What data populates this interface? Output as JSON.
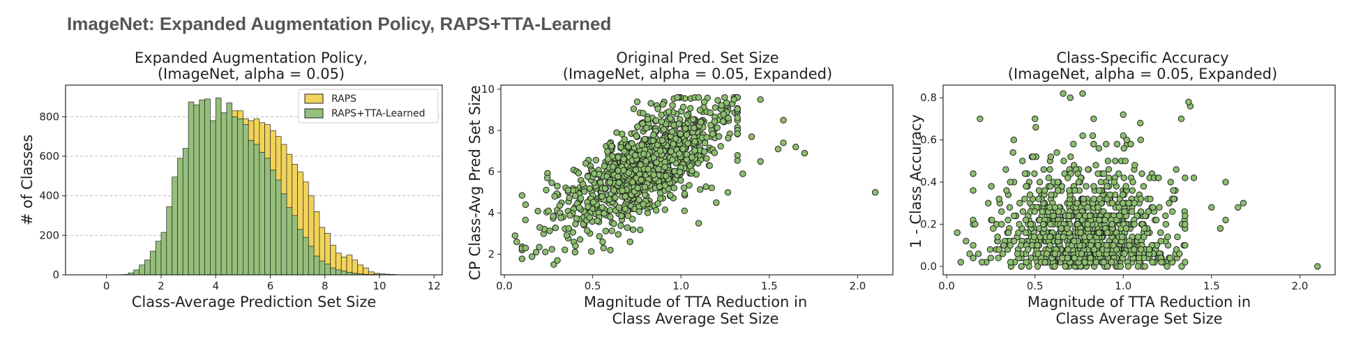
{
  "figure": {
    "title": "ImageNet: Expanded Augmentation Policy, RAPS+TTA-Learned"
  },
  "colors": {
    "raps": "#f2d35a",
    "tta": "#95bf7a",
    "scatter_fill": "#8cbf6e",
    "edge": "#222222",
    "grid": "#bbbbbb"
  },
  "chart_data": [
    {
      "type": "bar",
      "title_line1": "Expanded Augmentation Policy,",
      "title_line2": "(ImageNet, alpha = 0.05)",
      "xlabel": "Class-Average Prediction Set Size",
      "ylabel": "# of Classes",
      "xlim": [
        -1.5,
        12.3
      ],
      "ylim": [
        0,
        960
      ],
      "xticks": [
        0,
        2,
        4,
        6,
        8,
        10,
        12
      ],
      "yticks": [
        0,
        200,
        400,
        600,
        800
      ],
      "grid_y": true,
      "legend_position": "top-right",
      "bin_width": 0.2,
      "series": [
        {
          "name": "RAPS",
          "bins_start": [
            0.8,
            1.0,
            1.2,
            1.4,
            1.6,
            1.8,
            2.0,
            2.2,
            2.4,
            2.6,
            2.8,
            3.0,
            3.2,
            3.4,
            3.6,
            3.8,
            4.0,
            4.2,
            4.4,
            4.6,
            4.8,
            5.0,
            5.2,
            5.4,
            5.6,
            5.8,
            6.0,
            6.2,
            6.4,
            6.6,
            6.8,
            7.0,
            7.2,
            7.4,
            7.6,
            7.8,
            8.0,
            8.2,
            8.4,
            8.6,
            8.8,
            9.0,
            9.2,
            9.4,
            9.6,
            9.8,
            10.0,
            10.2,
            10.4
          ],
          "values": [
            5,
            15,
            25,
            45,
            65,
            95,
            145,
            200,
            290,
            380,
            420,
            530,
            620,
            700,
            740,
            760,
            790,
            800,
            820,
            830,
            830,
            790,
            780,
            790,
            770,
            760,
            730,
            700,
            660,
            610,
            560,
            520,
            470,
            400,
            320,
            240,
            210,
            150,
            110,
            90,
            100,
            75,
            50,
            35,
            15,
            8,
            5,
            3,
            2
          ]
        },
        {
          "name": "RAPS+TTA-Learned",
          "bins_start": [
            0.6,
            0.8,
            1.0,
            1.2,
            1.4,
            1.6,
            1.8,
            2.0,
            2.2,
            2.4,
            2.6,
            2.8,
            3.0,
            3.2,
            3.4,
            3.6,
            3.8,
            4.0,
            4.2,
            4.4,
            4.6,
            4.8,
            5.0,
            5.2,
            5.4,
            5.6,
            5.8,
            6.0,
            6.2,
            6.4,
            6.6,
            6.8,
            7.0,
            7.2,
            7.4,
            7.6,
            7.8,
            8.0,
            8.2,
            8.4,
            8.6,
            8.8,
            9.0,
            9.2,
            9.4,
            9.6,
            9.8,
            10.0,
            10.2,
            10.4
          ],
          "values": [
            2,
            10,
            25,
            50,
            75,
            120,
            170,
            215,
            345,
            495,
            590,
            640,
            875,
            860,
            885,
            890,
            780,
            895,
            820,
            870,
            800,
            790,
            760,
            680,
            660,
            620,
            590,
            530,
            480,
            410,
            340,
            300,
            230,
            190,
            145,
            95,
            70,
            55,
            35,
            25,
            20,
            13,
            8,
            5,
            3,
            2,
            2,
            1,
            1,
            1
          ]
        }
      ]
    },
    {
      "type": "scatter",
      "title_line1": "Original Pred. Set Size",
      "title_line2": "(ImageNet, alpha = 0.05, Expanded)",
      "xlabel_line1": "Magnitude of TTA Reduction in",
      "xlabel_line2": "Class Average Set Size",
      "ylabel": "CP Class-Avg Pred Set Size",
      "xlim": [
        -0.02,
        2.2
      ],
      "ylim": [
        1.0,
        10.2
      ],
      "xticks": [
        0.0,
        0.5,
        1.0,
        1.5,
        2.0
      ],
      "yticks": [
        2,
        4,
        6,
        8,
        10
      ],
      "n_points": 1000,
      "x_mean": 0.78,
      "x_sd": 0.24,
      "y_intercept": 2.4,
      "y_slope": 4.8,
      "y_sd": 1.15,
      "points": [
        [
          2.1,
          5.0
        ],
        [
          1.7,
          6.9
        ],
        [
          1.65,
          7.2
        ],
        [
          1.58,
          7.4
        ],
        [
          1.58,
          8.5
        ],
        [
          1.55,
          7.1
        ],
        [
          1.45,
          9.5
        ],
        [
          1.45,
          6.5
        ],
        [
          1.3,
          9.5
        ],
        [
          1.4,
          7.7
        ],
        [
          1.35,
          5.9
        ],
        [
          1.1,
          9.6
        ],
        [
          0.06,
          2.9
        ],
        [
          0.07,
          2.6
        ],
        [
          0.12,
          2.3
        ],
        [
          0.12,
          4.4
        ],
        [
          0.18,
          2.1
        ],
        [
          0.28,
          1.5
        ],
        [
          0.3,
          1.7
        ],
        [
          0.2,
          3.3
        ],
        [
          0.25,
          4.1
        ],
        [
          0.3,
          5.3
        ],
        [
          1.02,
          4.1
        ],
        [
          1.1,
          3.5
        ],
        [
          1.2,
          4.5
        ]
      ]
    },
    {
      "type": "scatter",
      "title_line1": "Class-Specific Accuracy",
      "title_line2": "(ImageNet, alpha = 0.05, Expanded)",
      "xlabel_line1": "Magnitude of TTA Reduction in",
      "xlabel_line2": "Class Average Set Size",
      "ylabel": "1 - Class Accuracy",
      "xlim": [
        -0.02,
        2.2
      ],
      "ylim": [
        -0.04,
        0.86
      ],
      "xticks": [
        0.0,
        0.5,
        1.0,
        1.5,
        2.0
      ],
      "yticks": [
        0.0,
        0.2,
        0.4,
        0.6,
        0.8
      ],
      "n_points": 1000,
      "x_mean": 0.78,
      "x_sd": 0.24,
      "y_scale": 0.22,
      "points": [
        [
          2.1,
          0.0
        ],
        [
          1.68,
          0.3
        ],
        [
          1.65,
          0.28
        ],
        [
          1.58,
          0.22
        ],
        [
          1.58,
          0.4
        ],
        [
          1.55,
          0.18
        ],
        [
          1.5,
          0.28
        ],
        [
          1.38,
          0.76
        ],
        [
          1.37,
          0.78
        ],
        [
          0.66,
          0.82
        ],
        [
          0.7,
          0.8
        ],
        [
          0.77,
          0.82
        ],
        [
          0.06,
          0.16
        ],
        [
          0.08,
          0.02
        ],
        [
          0.11,
          0.12
        ],
        [
          0.13,
          0.06
        ],
        [
          0.18,
          0.06
        ],
        [
          0.2,
          0.02
        ],
        [
          0.38,
          0.6
        ],
        [
          1.0,
          0.72
        ],
        [
          1.02,
          0.6
        ],
        [
          1.35,
          0.42
        ],
        [
          1.4,
          0.42
        ]
      ]
    }
  ]
}
